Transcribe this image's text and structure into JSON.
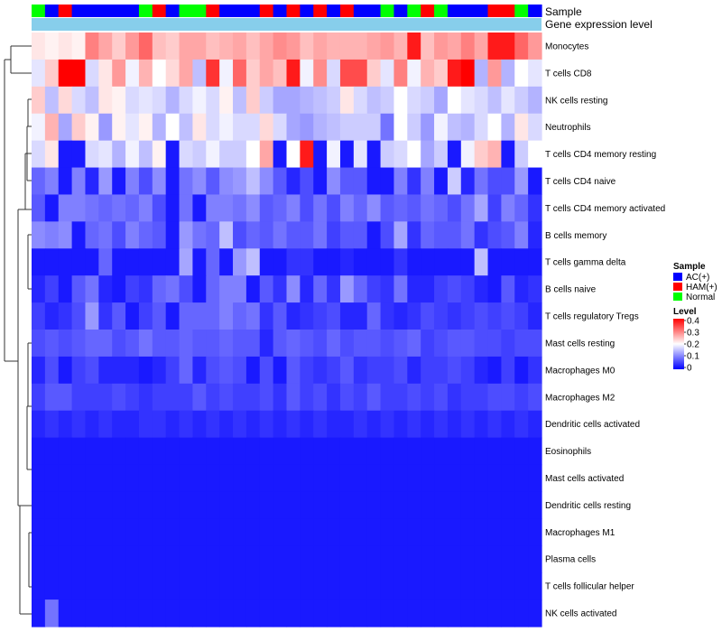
{
  "chart_data": {
    "type": "heatmap",
    "annotation_labels": {
      "sample": "Sample",
      "expression": "Gene expression level"
    },
    "legend": {
      "sample_title": "Sample",
      "sample_entries": [
        {
          "label": "AC(+)",
          "color": "#0000ff"
        },
        {
          "label": "HAM(+)",
          "color": "#ff0000"
        },
        {
          "label": "Normal",
          "color": "#00ff00"
        }
      ],
      "level_title": "Level",
      "level_ticks": [
        "0.4",
        "0.3",
        "0.2",
        "0.1",
        "0"
      ],
      "placement": "right"
    },
    "color_scale": {
      "low": "#0000ff",
      "mid": "#ffffff",
      "high": "#ff0000",
      "min": 0,
      "max": 0.4,
      "mid_value": 0.2
    },
    "sample_groups": [
      "N",
      "B",
      "R",
      "B",
      "B",
      "B",
      "B",
      "B",
      "N",
      "R",
      "B",
      "N",
      "N",
      "R",
      "B",
      "B",
      "B",
      "R",
      "B",
      "R",
      "B",
      "R",
      "B",
      "R",
      "B",
      "B",
      "N",
      "B",
      "N",
      "R",
      "N",
      "B",
      "B",
      "B",
      "R",
      "R",
      "N",
      "B"
    ],
    "rows": [
      {
        "name": "Monocytes",
        "values": [
          0.22,
          0.21,
          0.22,
          0.21,
          0.3,
          0.27,
          0.24,
          0.28,
          0.32,
          0.25,
          0.24,
          0.27,
          0.27,
          0.25,
          0.26,
          0.27,
          0.25,
          0.27,
          0.29,
          0.28,
          0.25,
          0.27,
          0.26,
          0.26,
          0.26,
          0.27,
          0.28,
          0.26,
          0.38,
          0.25,
          0.28,
          0.27,
          0.3,
          0.27,
          0.38,
          0.38,
          0.32,
          0.28
        ]
      },
      {
        "name": "T cells CD8",
        "values": [
          0.18,
          0.24,
          0.4,
          0.4,
          0.17,
          0.22,
          0.28,
          0.19,
          0.26,
          0.2,
          0.23,
          0.27,
          0.15,
          0.36,
          0.19,
          0.32,
          0.24,
          0.27,
          0.25,
          0.38,
          0.19,
          0.29,
          0.17,
          0.34,
          0.34,
          0.24,
          0.18,
          0.3,
          0.19,
          0.26,
          0.24,
          0.38,
          0.4,
          0.14,
          0.28,
          0.14,
          0.2,
          0.18
        ]
      },
      {
        "name": "NK cells resting",
        "values": [
          0.24,
          0.15,
          0.23,
          0.17,
          0.15,
          0.22,
          0.21,
          0.17,
          0.18,
          0.17,
          0.14,
          0.17,
          0.19,
          0.17,
          0.21,
          0.15,
          0.24,
          0.16,
          0.13,
          0.13,
          0.14,
          0.15,
          0.16,
          0.22,
          0.17,
          0.15,
          0.16,
          0.2,
          0.17,
          0.16,
          0.13,
          0.2,
          0.18,
          0.17,
          0.15,
          0.18,
          0.16,
          0.14
        ]
      },
      {
        "name": "Neutrophils",
        "values": [
          0.19,
          0.26,
          0.13,
          0.24,
          0.21,
          0.12,
          0.21,
          0.18,
          0.21,
          0.14,
          0.2,
          0.15,
          0.22,
          0.17,
          0.19,
          0.17,
          0.17,
          0.23,
          0.17,
          0.13,
          0.12,
          0.14,
          0.15,
          0.16,
          0.16,
          0.16,
          0.09,
          0.2,
          0.16,
          0.12,
          0.19,
          0.15,
          0.14,
          0.17,
          0.2,
          0.14,
          0.22,
          0.17
        ]
      },
      {
        "name": "T cells CD4 memory resting",
        "values": [
          0.17,
          0.22,
          0.02,
          0.02,
          0.17,
          0.18,
          0.14,
          0.19,
          0.15,
          0.21,
          0.02,
          0.17,
          0.16,
          0.19,
          0.16,
          0.16,
          0.2,
          0.27,
          0.02,
          0.2,
          0.38,
          0.02,
          0.19,
          0.02,
          0.18,
          0.02,
          0.16,
          0.17,
          0.2,
          0.13,
          0.16,
          0.02,
          0.19,
          0.24,
          0.26,
          0.02,
          0.16,
          0.2
        ]
      },
      {
        "name": "T cells CD4 naive",
        "values": [
          0.08,
          0.1,
          0.02,
          0.1,
          0.03,
          0.12,
          0.02,
          0.1,
          0.06,
          0.11,
          0.02,
          0.09,
          0.11,
          0.07,
          0.11,
          0.12,
          0.15,
          0.11,
          0.07,
          0.03,
          0.06,
          0.02,
          0.11,
          0.07,
          0.07,
          0.02,
          0.02,
          0.1,
          0.04,
          0.1,
          0.02,
          0.16,
          0.03,
          0.09,
          0.06,
          0.06,
          0.12,
          0.02
        ]
      },
      {
        "name": "T cells CD4 memory activated",
        "values": [
          0.07,
          0.02,
          0.1,
          0.1,
          0.09,
          0.08,
          0.09,
          0.08,
          0.1,
          0.06,
          0.02,
          0.09,
          0.02,
          0.1,
          0.1,
          0.09,
          0.11,
          0.07,
          0.08,
          0.1,
          0.06,
          0.09,
          0.06,
          0.1,
          0.08,
          0.11,
          0.07,
          0.08,
          0.07,
          0.09,
          0.08,
          0.06,
          0.09,
          0.13,
          0.05,
          0.1,
          0.08,
          0.04
        ]
      },
      {
        "name": "B cells memory",
        "values": [
          0.11,
          0.1,
          0.11,
          0.02,
          0.08,
          0.09,
          0.06,
          0.1,
          0.08,
          0.07,
          0.02,
          0.12,
          0.09,
          0.08,
          0.15,
          0.06,
          0.08,
          0.07,
          0.09,
          0.07,
          0.07,
          0.09,
          0.05,
          0.07,
          0.07,
          0.02,
          0.06,
          0.13,
          0.04,
          0.08,
          0.07,
          0.07,
          0.09,
          0.04,
          0.06,
          0.07,
          0.1,
          0.03
        ]
      },
      {
        "name": "T cells gamma delta",
        "values": [
          0.02,
          0.02,
          0.02,
          0.02,
          0.02,
          0.08,
          0.02,
          0.02,
          0.02,
          0.02,
          0.02,
          0.13,
          0.02,
          0.08,
          0.02,
          0.12,
          0.15,
          0.02,
          0.02,
          0.04,
          0.04,
          0.02,
          0.02,
          0.03,
          0.02,
          0.02,
          0.02,
          0.04,
          0.02,
          0.02,
          0.02,
          0.02,
          0.02,
          0.15,
          0.02,
          0.02,
          0.02,
          0.02
        ]
      },
      {
        "name": "B cells naive",
        "values": [
          0.03,
          0.05,
          0.02,
          0.07,
          0.09,
          0.03,
          0.02,
          0.05,
          0.04,
          0.08,
          0.09,
          0.06,
          0.02,
          0.08,
          0.1,
          0.1,
          0.02,
          0.07,
          0.04,
          0.11,
          0.03,
          0.08,
          0.04,
          0.12,
          0.08,
          0.05,
          0.04,
          0.09,
          0.03,
          0.03,
          0.05,
          0.06,
          0.05,
          0.03,
          0.02,
          0.07,
          0.03,
          0.04
        ]
      },
      {
        "name": "T cells regulatory  Tregs",
        "values": [
          0.05,
          0.03,
          0.04,
          0.06,
          0.12,
          0.04,
          0.07,
          0.02,
          0.05,
          0.07,
          0.02,
          0.08,
          0.08,
          0.08,
          0.1,
          0.08,
          0.09,
          0.04,
          0.07,
          0.03,
          0.04,
          0.05,
          0.06,
          0.03,
          0.03,
          0.08,
          0.04,
          0.03,
          0.04,
          0.06,
          0.05,
          0.04,
          0.05,
          0.06,
          0.05,
          0.06,
          0.05,
          0.03
        ]
      },
      {
        "name": "Mast cells resting",
        "values": [
          0.06,
          0.07,
          0.06,
          0.07,
          0.08,
          0.08,
          0.06,
          0.07,
          0.09,
          0.07,
          0.07,
          0.08,
          0.07,
          0.07,
          0.08,
          0.07,
          0.07,
          0.03,
          0.07,
          0.08,
          0.07,
          0.06,
          0.08,
          0.06,
          0.07,
          0.07,
          0.06,
          0.07,
          0.08,
          0.05,
          0.06,
          0.07,
          0.07,
          0.06,
          0.06,
          0.05,
          0.06,
          0.06
        ]
      },
      {
        "name": "Macrophages M0",
        "values": [
          0.03,
          0.06,
          0.02,
          0.05,
          0.06,
          0.03,
          0.03,
          0.03,
          0.02,
          0.03,
          0.05,
          0.08,
          0.03,
          0.06,
          0.07,
          0.06,
          0.02,
          0.06,
          0.02,
          0.07,
          0.05,
          0.04,
          0.05,
          0.07,
          0.04,
          0.05,
          0.05,
          0.06,
          0.03,
          0.05,
          0.05,
          0.06,
          0.05,
          0.03,
          0.02,
          0.05,
          0.02,
          0.04
        ]
      },
      {
        "name": "Macrophages M2",
        "values": [
          0.05,
          0.07,
          0.07,
          0.05,
          0.05,
          0.05,
          0.06,
          0.05,
          0.04,
          0.05,
          0.05,
          0.05,
          0.07,
          0.05,
          0.06,
          0.05,
          0.05,
          0.06,
          0.04,
          0.07,
          0.05,
          0.06,
          0.04,
          0.06,
          0.05,
          0.07,
          0.05,
          0.05,
          0.06,
          0.05,
          0.06,
          0.04,
          0.05,
          0.05,
          0.06,
          0.06,
          0.05,
          0.06
        ]
      },
      {
        "name": "Dendritic cells activated",
        "values": [
          0.03,
          0.04,
          0.03,
          0.04,
          0.03,
          0.04,
          0.03,
          0.03,
          0.04,
          0.04,
          0.03,
          0.04,
          0.03,
          0.04,
          0.03,
          0.04,
          0.03,
          0.04,
          0.03,
          0.04,
          0.03,
          0.04,
          0.03,
          0.03,
          0.04,
          0.03,
          0.04,
          0.03,
          0.04,
          0.03,
          0.04,
          0.03,
          0.04,
          0.03,
          0.04,
          0.03,
          0.04,
          0.03
        ]
      },
      {
        "name": "Eosinophils",
        "values": [
          0.02,
          0.02,
          0.02,
          0.02,
          0.02,
          0.02,
          0.02,
          0.02,
          0.02,
          0.02,
          0.02,
          0.02,
          0.02,
          0.02,
          0.02,
          0.02,
          0.02,
          0.02,
          0.02,
          0.02,
          0.02,
          0.02,
          0.02,
          0.02,
          0.02,
          0.02,
          0.02,
          0.02,
          0.02,
          0.02,
          0.02,
          0.02,
          0.02,
          0.02,
          0.02,
          0.02,
          0.02,
          0.02
        ]
      },
      {
        "name": "Mast cells activated",
        "values": [
          0.02,
          0.02,
          0.02,
          0.02,
          0.02,
          0.02,
          0.02,
          0.02,
          0.02,
          0.02,
          0.02,
          0.02,
          0.02,
          0.02,
          0.02,
          0.02,
          0.02,
          0.02,
          0.02,
          0.02,
          0.02,
          0.02,
          0.02,
          0.02,
          0.02,
          0.02,
          0.02,
          0.02,
          0.02,
          0.02,
          0.02,
          0.02,
          0.02,
          0.02,
          0.02,
          0.02,
          0.02,
          0.02
        ]
      },
      {
        "name": "Dendritic cells resting",
        "values": [
          0.02,
          0.02,
          0.02,
          0.02,
          0.02,
          0.02,
          0.02,
          0.02,
          0.02,
          0.02,
          0.02,
          0.02,
          0.02,
          0.02,
          0.02,
          0.02,
          0.02,
          0.02,
          0.02,
          0.02,
          0.02,
          0.02,
          0.02,
          0.02,
          0.02,
          0.02,
          0.02,
          0.02,
          0.02,
          0.02,
          0.02,
          0.02,
          0.02,
          0.02,
          0.02,
          0.02,
          0.02,
          0.02
        ]
      },
      {
        "name": "Macrophages M1",
        "values": [
          0.02,
          0.02,
          0.02,
          0.02,
          0.02,
          0.02,
          0.02,
          0.02,
          0.02,
          0.02,
          0.02,
          0.02,
          0.02,
          0.02,
          0.02,
          0.02,
          0.02,
          0.02,
          0.02,
          0.02,
          0.02,
          0.02,
          0.02,
          0.02,
          0.02,
          0.02,
          0.02,
          0.02,
          0.02,
          0.02,
          0.02,
          0.02,
          0.02,
          0.02,
          0.02,
          0.02,
          0.02,
          0.02
        ]
      },
      {
        "name": "Plasma cells",
        "values": [
          0.02,
          0.02,
          0.02,
          0.02,
          0.02,
          0.02,
          0.02,
          0.02,
          0.02,
          0.02,
          0.02,
          0.02,
          0.02,
          0.02,
          0.02,
          0.02,
          0.02,
          0.02,
          0.02,
          0.02,
          0.02,
          0.02,
          0.02,
          0.02,
          0.02,
          0.02,
          0.02,
          0.02,
          0.02,
          0.02,
          0.02,
          0.02,
          0.02,
          0.02,
          0.02,
          0.02,
          0.02,
          0.02
        ]
      },
      {
        "name": "T cells follicular helper",
        "values": [
          0.02,
          0.02,
          0.02,
          0.02,
          0.02,
          0.02,
          0.02,
          0.02,
          0.02,
          0.02,
          0.02,
          0.02,
          0.02,
          0.02,
          0.02,
          0.02,
          0.02,
          0.02,
          0.02,
          0.02,
          0.02,
          0.02,
          0.02,
          0.02,
          0.02,
          0.02,
          0.02,
          0.02,
          0.02,
          0.02,
          0.02,
          0.02,
          0.02,
          0.02,
          0.02,
          0.02,
          0.02,
          0.02
        ]
      },
      {
        "name": "NK cells activated",
        "values": [
          0.02,
          0.09,
          0.02,
          0.02,
          0.02,
          0.02,
          0.02,
          0.02,
          0.02,
          0.02,
          0.02,
          0.02,
          0.02,
          0.02,
          0.02,
          0.02,
          0.02,
          0.02,
          0.02,
          0.02,
          0.02,
          0.02,
          0.02,
          0.02,
          0.02,
          0.02,
          0.02,
          0.02,
          0.02,
          0.02,
          0.02,
          0.02,
          0.02,
          0.02,
          0.02,
          0.02,
          0.02,
          0.02
        ]
      }
    ]
  }
}
